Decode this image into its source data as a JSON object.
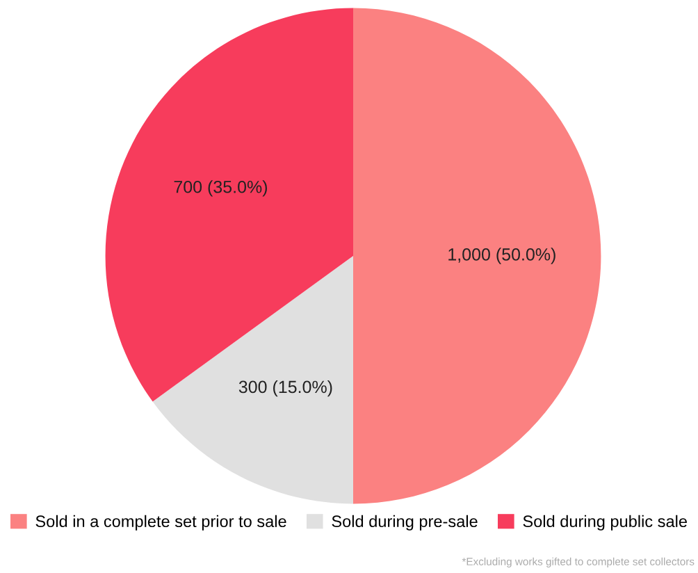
{
  "chart_data": {
    "type": "pie",
    "categories": [
      "Sold in a complete set prior to sale",
      "Sold during pre-sale",
      "Sold during public sale"
    ],
    "values": [
      1000,
      300,
      700
    ],
    "colors": [
      "#fb8181",
      "#e0e0e0",
      "#f73c5c"
    ],
    "value_labels": [
      "1,000 (50.0%)",
      "300 (15.0%)",
      "700 (35.0%)"
    ],
    "legend": "bottom",
    "annotations": [
      "*Excluding works gifted to complete set collectors"
    ]
  }
}
